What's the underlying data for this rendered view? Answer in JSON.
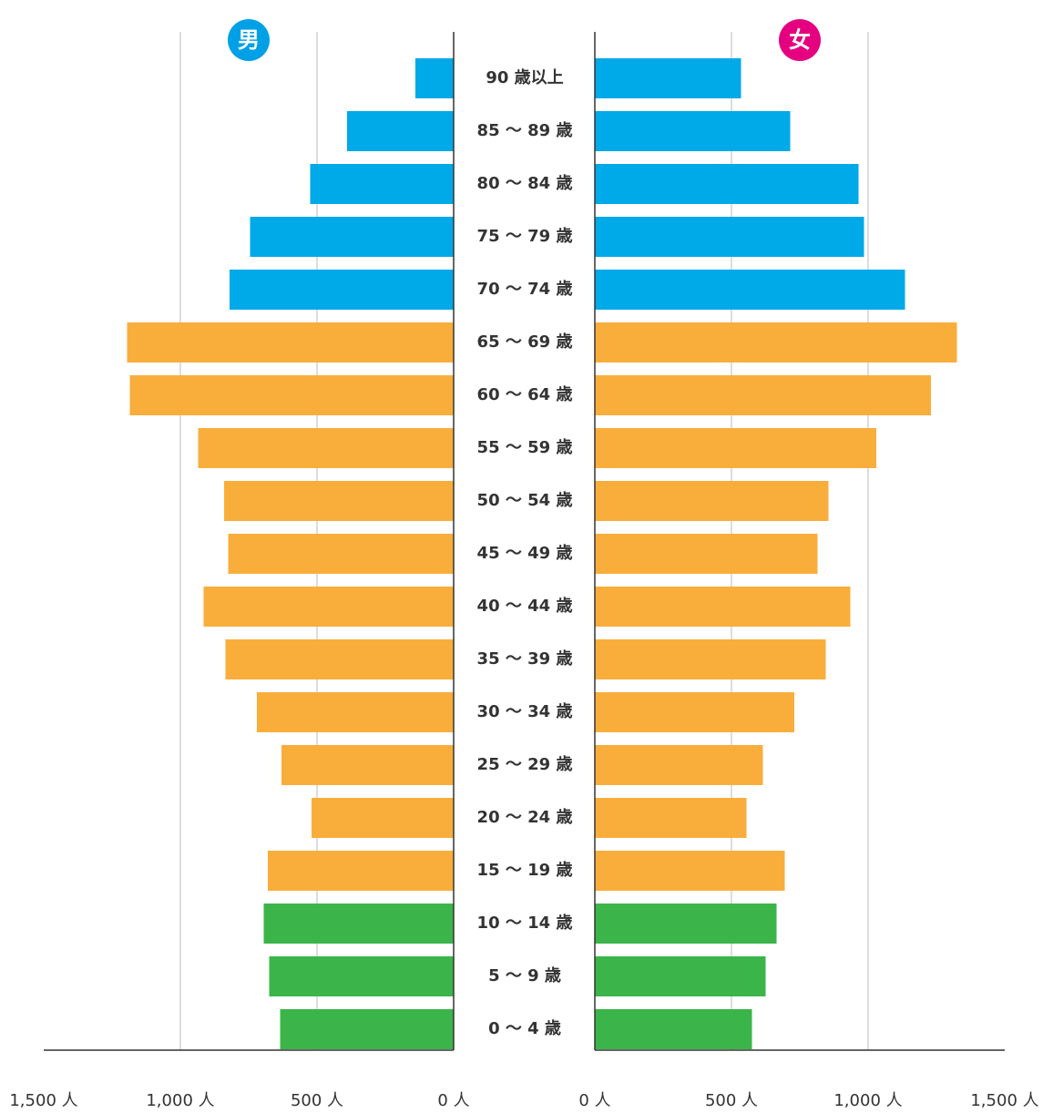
{
  "chart_data": {
    "type": "pyramid",
    "categories": [
      "90 歳以上",
      "85 〜 89 歳",
      "80 〜 84 歳",
      "75 〜 79 歳",
      "70 〜 74 歳",
      "65 〜 69 歳",
      "60 〜 64 歳",
      "55 〜 59 歳",
      "50 〜 54 歳",
      "45 〜 49 歳",
      "40 〜 44 歳",
      "35 〜 39 歳",
      "30 〜 34 歳",
      "25 〜 29 歳",
      "20 〜 24 歳",
      "15 〜 19 歳",
      "10 〜 14 歳",
      "5 〜 9 歳",
      "0 〜 4 歳"
    ],
    "colors": [
      "#00a9e8",
      "#00a9e8",
      "#00a9e8",
      "#00a9e8",
      "#00a9e8",
      "#f9ae3c",
      "#f9ae3c",
      "#f9ae3c",
      "#f9ae3c",
      "#f9ae3c",
      "#f9ae3c",
      "#f9ae3c",
      "#f9ae3c",
      "#f9ae3c",
      "#f9ae3c",
      "#f9ae3c",
      "#3bb54a",
      "#3bb54a",
      "#3bb54a"
    ],
    "series": [
      {
        "name": "男",
        "color": "#00a0e6",
        "values": [
          140,
          390,
          525,
          745,
          820,
          1195,
          1185,
          935,
          840,
          825,
          915,
          835,
          720,
          630,
          520,
          680,
          695,
          675,
          635
        ]
      },
      {
        "name": "女",
        "color": "#e4007f",
        "values": [
          535,
          715,
          965,
          985,
          1135,
          1325,
          1230,
          1030,
          855,
          815,
          935,
          845,
          730,
          615,
          555,
          695,
          665,
          625,
          575
        ]
      }
    ],
    "xlim": [
      0,
      1500
    ],
    "xticks": [
      {
        "value": 0,
        "label": "0 人"
      },
      {
        "value": 500,
        "label": "500 人"
      },
      {
        "value": 1000,
        "label": "1,000 人"
      },
      {
        "value": 1500,
        "label": "1,500 人"
      }
    ],
    "grid": true
  }
}
